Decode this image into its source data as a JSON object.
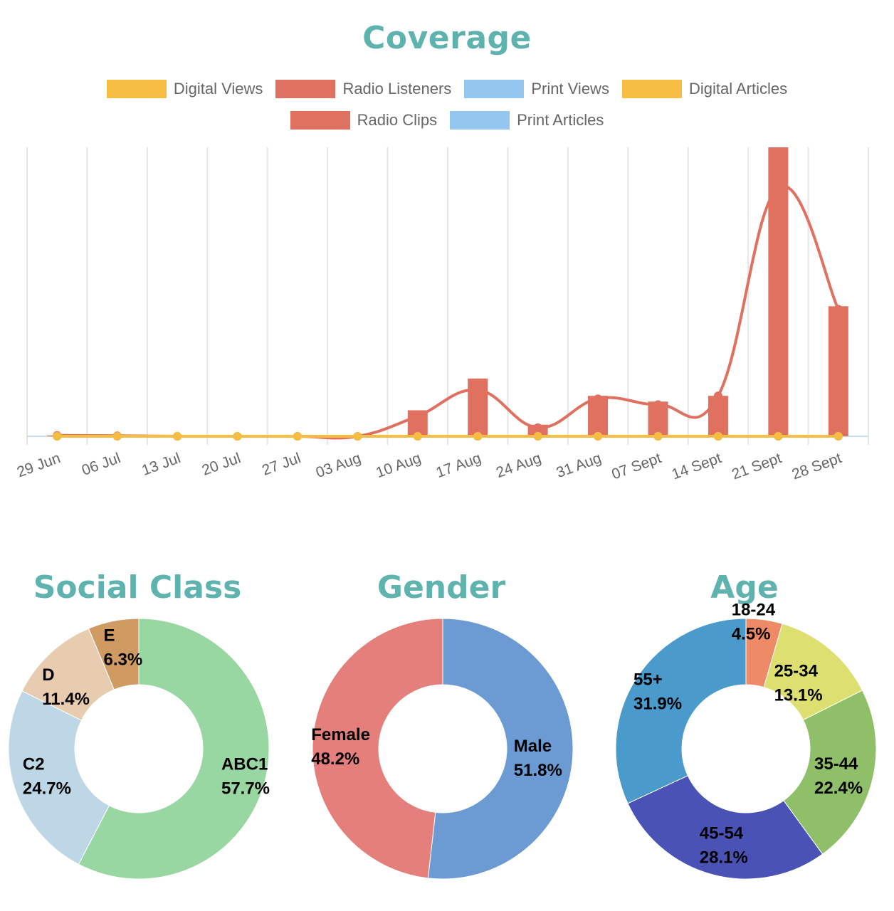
{
  "coverage": {
    "title": "Coverage",
    "legend_row1": [
      {
        "label": "Digital Views",
        "color": "#f5bd41"
      },
      {
        "label": "Radio Listeners",
        "color": "#e07060"
      },
      {
        "label": "Print Views",
        "color": "#94c6f0"
      },
      {
        "label": "Digital Articles",
        "color": "#f5bd41"
      }
    ],
    "legend_row2": [
      {
        "label": "Radio Clips",
        "color": "#e07060"
      },
      {
        "label": "Print Articles",
        "color": "#94c6f0"
      }
    ]
  },
  "chart_data": [
    {
      "type": "bar",
      "title": "Coverage",
      "categories": [
        "29 Jun",
        "06 Jul",
        "13 Jul",
        "20 Jul",
        "27 Jul",
        "03 Aug",
        "10 Aug",
        "17 Aug",
        "24 Aug",
        "31 Aug",
        "07 Sept",
        "14 Sept",
        "21 Sept",
        "28 Sept"
      ],
      "ylim": [
        0,
        100
      ],
      "grid": true,
      "series": [
        {
          "name": "Radio Clips",
          "type": "bar",
          "color": "#e07060",
          "values": [
            0.3,
            0,
            0,
            0,
            0,
            0,
            9,
            20,
            4,
            14,
            12,
            14,
            100,
            45
          ]
        },
        {
          "name": "Radio Listeners",
          "type": "line",
          "color": "#e07060",
          "values": [
            0.3,
            0.2,
            0,
            0,
            0,
            0,
            7,
            16,
            3,
            13,
            11,
            14,
            86,
            44
          ]
        },
        {
          "name": "Digital Views",
          "type": "line",
          "color": "#f5bd41",
          "values": [
            0,
            0,
            0,
            0,
            0,
            0,
            0,
            0,
            0,
            0,
            0,
            0,
            0,
            0
          ]
        },
        {
          "name": "Digital Articles",
          "type": "line",
          "color": "#f5bd41",
          "values": [
            0,
            0,
            0,
            0,
            0,
            0,
            0,
            0,
            0,
            0,
            0,
            0,
            0,
            0
          ]
        },
        {
          "name": "Print Views",
          "type": "line",
          "color": "#94c6f0",
          "values": [
            0,
            0,
            0,
            0,
            0,
            0,
            0,
            0,
            0,
            0,
            0,
            0,
            0,
            0
          ]
        },
        {
          "name": "Print Articles",
          "type": "bar",
          "color": "#94c6f0",
          "values": [
            0,
            0,
            0,
            0,
            0,
            0,
            0,
            0,
            0,
            0,
            0,
            0,
            0,
            0
          ]
        }
      ]
    },
    {
      "type": "pie",
      "title": "Social Class",
      "slices": [
        {
          "label": "ABC1",
          "value": 57.7,
          "pct": "57.7%",
          "color": "#98d6a2"
        },
        {
          "label": "C2",
          "value": 24.7,
          "pct": "24.7%",
          "color": "#bdd7e6"
        },
        {
          "label": "D",
          "value": 11.4,
          "pct": "11.4%",
          "color": "#e8ccb0"
        },
        {
          "label": "E",
          "value": 6.3,
          "pct": "6.3%",
          "color": "#cf9b63"
        }
      ]
    },
    {
      "type": "pie",
      "title": "Gender",
      "slices": [
        {
          "label": "Male",
          "value": 51.8,
          "pct": "51.8%",
          "color": "#6b9bd2"
        },
        {
          "label": "Female",
          "value": 48.2,
          "pct": "48.2%",
          "color": "#e57f7c"
        }
      ]
    },
    {
      "type": "pie",
      "title": "Age",
      "slices": [
        {
          "label": "18-24",
          "value": 4.5,
          "pct": "4.5%",
          "color": "#ee8a66"
        },
        {
          "label": "25-34",
          "value": 13.1,
          "pct": "13.1%",
          "color": "#dde070"
        },
        {
          "label": "35-44",
          "value": 22.4,
          "pct": "22.4%",
          "color": "#8fbf69"
        },
        {
          "label": "45-54",
          "value": 28.1,
          "pct": "28.1%",
          "color": "#4b52b5"
        },
        {
          "label": "55+",
          "value": 31.9,
          "pct": "31.9%",
          "color": "#4a9acc"
        }
      ]
    }
  ]
}
